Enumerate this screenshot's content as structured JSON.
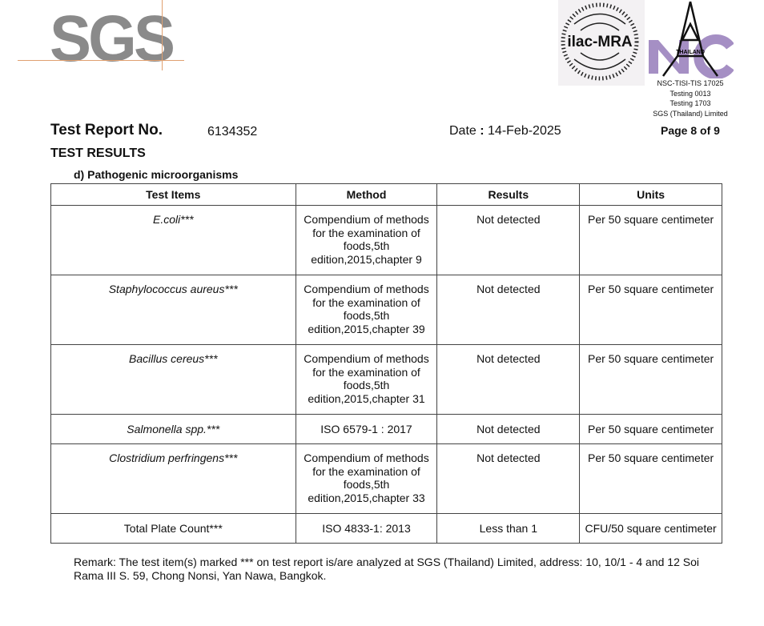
{
  "header": {
    "logo": "SGS",
    "ilac_logo": "ilac-MRA",
    "nac_logo": "NAC THAILAND",
    "accreditation": [
      "NSC-TISI-TIS 17025",
      "Testing 0013",
      "Testing 1703",
      "SGS (Thailand) Limited"
    ],
    "page": "Page 8 of 9"
  },
  "report": {
    "label": "Test Report No.",
    "number": "6134352",
    "date_label": "Date",
    "date": "14-Feb-2025",
    "section": "TEST RESULTS",
    "subsection": "d) Pathogenic microorganisms"
  },
  "table": {
    "columns": [
      "Test Items",
      "Method",
      "Results",
      "Units"
    ],
    "rows": [
      {
        "item": "E.coli***",
        "italic": true,
        "method": "Compendium of methods for the examination of foods,5th edition,2015,chapter 9",
        "result": "Not detected",
        "unit": "Per 50 square centimeter"
      },
      {
        "item": "Staphylococcus aureus***",
        "italic": true,
        "method": "Compendium of methods for the examination of foods,5th edition,2015,chapter 39",
        "result": "Not detected",
        "unit": "Per 50 square centimeter"
      },
      {
        "item": "Bacillus cereus***",
        "italic": true,
        "method": "Compendium of methods for the examination of foods,5th edition,2015,chapter 31",
        "result": "Not detected",
        "unit": "Per 50 square centimeter"
      },
      {
        "item": "Salmonella spp.***",
        "italic": true,
        "method": "ISO 6579-1 : 2017",
        "result": "Not detected",
        "unit": "Per 50 square centimeter"
      },
      {
        "item": "Clostridium perfringens***",
        "italic": true,
        "method": "Compendium of methods for the examination of foods,5th edition,2015,chapter 33",
        "result": "Not detected",
        "unit": "Per 50 square centimeter"
      },
      {
        "item": "Total Plate Count***",
        "italic": false,
        "method": "ISO 4833-1: 2013",
        "result": "Less than 1",
        "unit": "CFU/50 square centimeter"
      }
    ]
  },
  "remark": "Remark: The test item(s) marked *** on test report is/are analyzed at SGS (Thailand) Limited, address: 10, 10/1 - 4 and 12 Soi Rama III S. 59, Chong Nonsi, Yan Nawa, Bangkok."
}
